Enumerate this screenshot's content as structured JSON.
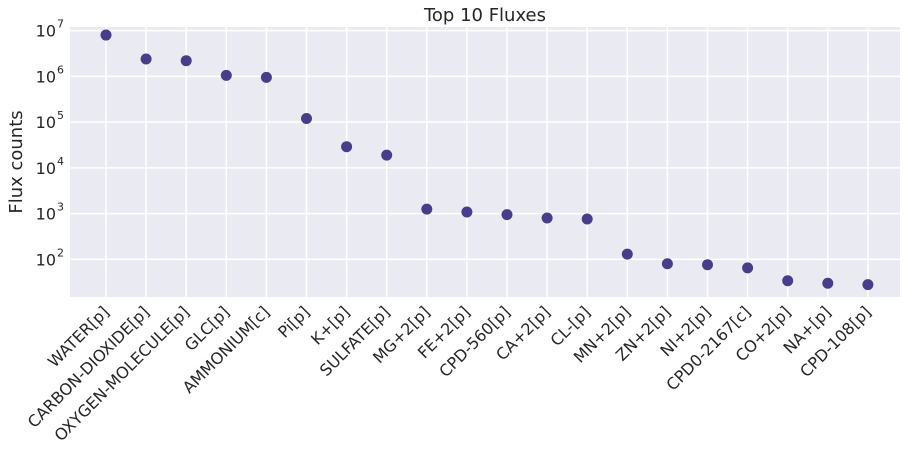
{
  "chart_data": {
    "type": "scatter",
    "title": "Top 10 Fluxes",
    "xlabel": "",
    "ylabel": "Flux counts",
    "yscale": "log",
    "ylim": [
      15,
      12000000
    ],
    "yticks": [
      {
        "base": "10",
        "exp": "2",
        "value": 100
      },
      {
        "base": "10",
        "exp": "3",
        "value": 1000
      },
      {
        "base": "10",
        "exp": "4",
        "value": 10000
      },
      {
        "base": "10",
        "exp": "5",
        "value": 100000
      },
      {
        "base": "10",
        "exp": "6",
        "value": 1000000
      },
      {
        "base": "10",
        "exp": "7",
        "value": 10000000
      }
    ],
    "grid": true,
    "legend": "none",
    "marker_color": "#483d8b",
    "background_color": "#eaeaf2",
    "categories": [
      "WATER[p]",
      "CARBON-DIOXIDE[p]",
      "OXYGEN-MOLECULE[p]",
      "GLC[p]",
      "AMMONIUM[c]",
      "Pi[p]",
      "K+[p]",
      "SULFATE[p]",
      "MG+2[p]",
      "FE+2[p]",
      "CPD-560[p]",
      "CA+2[p]",
      "CL-[p]",
      "MN+2[p]",
      "ZN+2[p]",
      "NI+2[p]",
      "CPD0-2167[c]",
      "CO+2[p]",
      "NA+[p]",
      "CPD-108[p]"
    ],
    "values": [
      8000000,
      2400000,
      2200000,
      1050000,
      950000,
      120000,
      29000,
      19000,
      1250,
      1080,
      950,
      800,
      760,
      130,
      80,
      76,
      65,
      34,
      30,
      28
    ]
  }
}
